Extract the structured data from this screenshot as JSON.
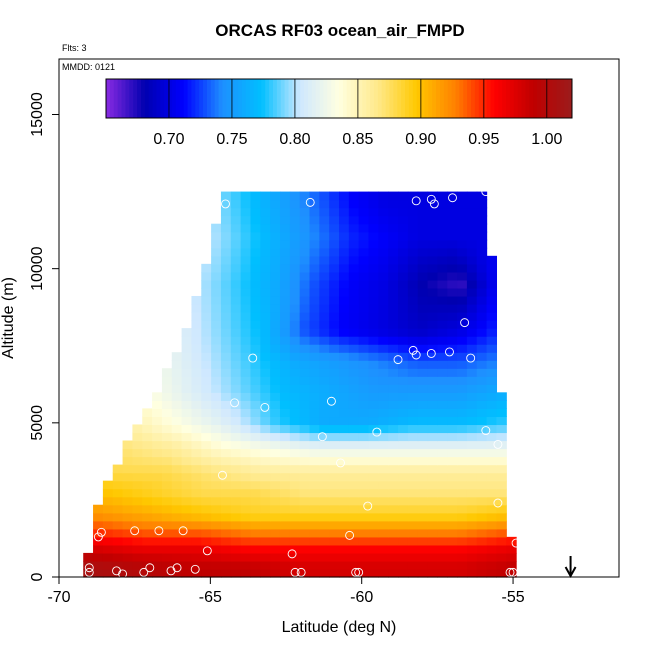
{
  "chart_data": {
    "type": "heatmap",
    "title": "ORCAS RF03 ocean_air_FMPD",
    "xlabel": "Latitude (deg N)",
    "ylabel": "Altitude (m)",
    "xlim": [
      -70,
      -51.5
    ],
    "ylim": [
      0,
      16800
    ],
    "x_ticks": [
      -70,
      -65,
      -60,
      -55
    ],
    "y_ticks": [
      0,
      5000,
      10000,
      15000
    ],
    "notes": {
      "flights": "Flts: 3",
      "date": "MMDD: 0121"
    },
    "colorbar": {
      "range": [
        0.65,
        1.02
      ],
      "ticks": [
        0.7,
        0.75,
        0.8,
        0.85,
        0.9,
        0.95,
        1.0
      ],
      "tick_labels": [
        "0.70",
        "0.75",
        "0.80",
        "0.85",
        "0.90",
        "0.95",
        "1.00"
      ],
      "colors": [
        "#8a2be2",
        "#0000b0",
        "#0000ff",
        "#1e90ff",
        "#00bfff",
        "#cfe8ff",
        "#ffffe0",
        "#ffe98a",
        "#ffc800",
        "#ff8000",
        "#ff0000",
        "#c00000",
        "#9b1c1c"
      ]
    },
    "field_rows": [
      {
        "alt": 12300,
        "xmin": -64.6,
        "xmax": -55.9,
        "vals": [
          0.79,
          0.77,
          0.75,
          0.73,
          0.71,
          0.7,
          0.7,
          0.7,
          0.7
        ]
      },
      {
        "alt": 11000,
        "xmin": -64.9,
        "xmax": -55.9,
        "vals": [
          0.8,
          0.78,
          0.76,
          0.74,
          0.72,
          0.71,
          0.7,
          0.7,
          0.7
        ]
      },
      {
        "alt": 9500,
        "xmin": -65.3,
        "xmax": -55.5,
        "vals": [
          0.8,
          0.78,
          0.76,
          0.73,
          0.71,
          0.7,
          0.68,
          0.67,
          0.71
        ]
      },
      {
        "alt": 8000,
        "xmin": -65.8,
        "xmax": -55.5,
        "vals": [
          0.81,
          0.79,
          0.77,
          0.73,
          0.71,
          0.7,
          0.69,
          0.7,
          0.72
        ]
      },
      {
        "alt": 7000,
        "xmin": -66.3,
        "xmax": -55.4,
        "vals": [
          0.82,
          0.8,
          0.78,
          0.76,
          0.75,
          0.74,
          0.73,
          0.73,
          0.74
        ]
      },
      {
        "alt": 6000,
        "xmin": -66.8,
        "xmax": -55.4,
        "vals": [
          0.83,
          0.81,
          0.79,
          0.77,
          0.76,
          0.75,
          0.75,
          0.75,
          0.76
        ]
      },
      {
        "alt": 5000,
        "xmin": -67.3,
        "xmax": -55.3,
        "vals": [
          0.85,
          0.83,
          0.81,
          0.78,
          0.76,
          0.76,
          0.77,
          0.77,
          0.78
        ]
      },
      {
        "alt": 4200,
        "xmin": -67.8,
        "xmax": -55.3,
        "vals": [
          0.87,
          0.86,
          0.84,
          0.83,
          0.82,
          0.82,
          0.82,
          0.82,
          0.82
        ]
      },
      {
        "alt": 3400,
        "xmin": -68.2,
        "xmax": -55.2,
        "vals": [
          0.88,
          0.88,
          0.87,
          0.86,
          0.86,
          0.86,
          0.86,
          0.86,
          0.86
        ]
      },
      {
        "alt": 2700,
        "xmin": -68.6,
        "xmax": -55.2,
        "vals": [
          0.9,
          0.89,
          0.88,
          0.88,
          0.87,
          0.87,
          0.87,
          0.87,
          0.87
        ]
      },
      {
        "alt": 2000,
        "xmin": -68.8,
        "xmax": -55.1,
        "vals": [
          0.92,
          0.91,
          0.9,
          0.89,
          0.89,
          0.89,
          0.89,
          0.89,
          0.9
        ]
      },
      {
        "alt": 1400,
        "xmin": -68.8,
        "xmax": -55.1,
        "vals": [
          0.95,
          0.94,
          0.94,
          0.93,
          0.93,
          0.93,
          0.93,
          0.93,
          0.94
        ]
      },
      {
        "alt": 900,
        "xmin": -69.0,
        "xmax": -55.0,
        "vals": [
          0.98,
          0.97,
          0.97,
          0.96,
          0.96,
          0.96,
          0.96,
          0.96,
          0.97
        ]
      },
      {
        "alt": 300,
        "xmin": -69.2,
        "xmax": -55.0,
        "vals": [
          1.01,
          1.0,
          0.99,
          0.99,
          0.98,
          0.98,
          0.98,
          0.98,
          0.99
        ]
      }
    ],
    "points": [
      {
        "x": -69.0,
        "y": 300
      },
      {
        "x": -69.0,
        "y": 150
      },
      {
        "x": -68.6,
        "y": 1450
      },
      {
        "x": -68.7,
        "y": 1300
      },
      {
        "x": -68.1,
        "y": 200
      },
      {
        "x": -67.9,
        "y": 100
      },
      {
        "x": -67.5,
        "y": 1500
      },
      {
        "x": -67.2,
        "y": 150
      },
      {
        "x": -67.0,
        "y": 300
      },
      {
        "x": -66.7,
        "y": 1500
      },
      {
        "x": -66.3,
        "y": 200
      },
      {
        "x": -66.1,
        "y": 300
      },
      {
        "x": -65.9,
        "y": 1500
      },
      {
        "x": -65.5,
        "y": 250
      },
      {
        "x": -65.1,
        "y": 850
      },
      {
        "x": -64.6,
        "y": 3300
      },
      {
        "x": -64.5,
        "y": 12100
      },
      {
        "x": -64.2,
        "y": 5650
      },
      {
        "x": -63.6,
        "y": 7100
      },
      {
        "x": -63.2,
        "y": 5500
      },
      {
        "x": -62.3,
        "y": 750
      },
      {
        "x": -62.2,
        "y": 150
      },
      {
        "x": -62.0,
        "y": 150
      },
      {
        "x": -61.7,
        "y": 12150
      },
      {
        "x": -61.3,
        "y": 4550
      },
      {
        "x": -61.0,
        "y": 5700
      },
      {
        "x": -60.7,
        "y": 3700
      },
      {
        "x": -60.4,
        "y": 1350
      },
      {
        "x": -60.2,
        "y": 150
      },
      {
        "x": -60.1,
        "y": 150
      },
      {
        "x": -59.8,
        "y": 2300
      },
      {
        "x": -59.5,
        "y": 4700
      },
      {
        "x": -58.8,
        "y": 7050
      },
      {
        "x": -58.3,
        "y": 7350
      },
      {
        "x": -58.2,
        "y": 7200
      },
      {
        "x": -58.2,
        "y": 12200
      },
      {
        "x": -57.7,
        "y": 7250
      },
      {
        "x": -57.7,
        "y": 12250
      },
      {
        "x": -57.6,
        "y": 12100
      },
      {
        "x": -57.1,
        "y": 7300
      },
      {
        "x": -57.0,
        "y": 12300
      },
      {
        "x": -56.6,
        "y": 8250
      },
      {
        "x": -56.4,
        "y": 7100
      },
      {
        "x": -55.9,
        "y": 12500
      },
      {
        "x": -55.9,
        "y": 4750
      },
      {
        "x": -55.5,
        "y": 4300
      },
      {
        "x": -55.5,
        "y": 2400
      },
      {
        "x": -55.1,
        "y": 150
      },
      {
        "x": -55.0,
        "y": 150
      },
      {
        "x": -54.9,
        "y": 1100
      }
    ],
    "arrow_x": -53.1
  }
}
